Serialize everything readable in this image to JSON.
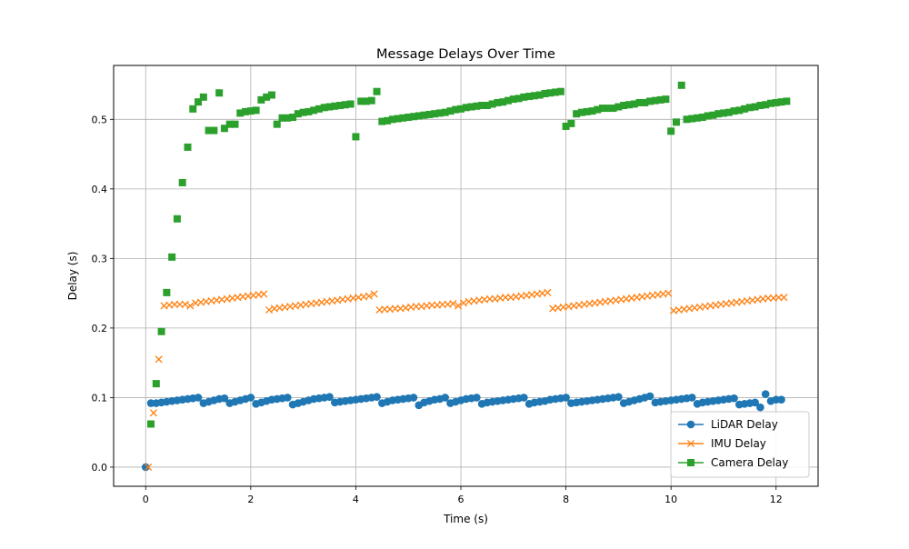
{
  "chart_data": {
    "type": "scatter",
    "title": "Message Delays Over Time",
    "xlabel": "Time (s)",
    "ylabel": "Delay (s)",
    "xlim": [
      -0.61,
      12.8
    ],
    "ylim": [
      -0.0275,
      0.5775
    ],
    "xticks": [
      0,
      2,
      4,
      6,
      8,
      10,
      12
    ],
    "yticks": [
      0.0,
      0.1,
      0.2,
      0.3,
      0.4,
      0.5
    ],
    "xtick_labels": [
      "0",
      "2",
      "4",
      "6",
      "8",
      "10",
      "12"
    ],
    "ytick_labels": [
      "0.0",
      "0.1",
      "0.2",
      "0.3",
      "0.4",
      "0.5"
    ],
    "grid": true,
    "legend_position": "bottom-right",
    "series": [
      {
        "name": "LiDAR Delay",
        "color": "#1f77b4",
        "marker": "circle",
        "x": [
          0,
          0.1,
          0.2,
          0.3,
          0.4,
          0.5,
          0.6,
          0.7,
          0.8,
          0.9,
          1.0,
          1.1,
          1.2,
          1.3,
          1.4,
          1.5,
          1.6,
          1.7,
          1.8,
          1.9,
          2.0,
          2.1,
          2.2,
          2.3,
          2.4,
          2.5,
          2.6,
          2.7,
          2.8,
          2.9,
          3.0,
          3.1,
          3.2,
          3.3,
          3.4,
          3.5,
          3.6,
          3.7,
          3.8,
          3.9,
          4.0,
          4.1,
          4.2,
          4.3,
          4.4,
          4.5,
          4.6,
          4.7,
          4.8,
          4.9,
          5.0,
          5.1,
          5.2,
          5.3,
          5.4,
          5.5,
          5.6,
          5.7,
          5.8,
          5.9,
          6.0,
          6.1,
          6.2,
          6.3,
          6.4,
          6.5,
          6.6,
          6.7,
          6.8,
          6.9,
          7.0,
          7.1,
          7.2,
          7.3,
          7.4,
          7.5,
          7.6,
          7.7,
          7.8,
          7.9,
          8.0,
          8.1,
          8.2,
          8.3,
          8.4,
          8.5,
          8.6,
          8.7,
          8.8,
          8.9,
          9.0,
          9.1,
          9.2,
          9.3,
          9.4,
          9.5,
          9.6,
          9.7,
          9.8,
          9.9,
          10.0,
          10.1,
          10.2,
          10.3,
          10.4,
          10.5,
          10.6,
          10.7,
          10.8,
          10.9,
          11.0,
          11.1,
          11.2,
          11.3,
          11.4,
          11.5,
          11.6,
          11.7,
          11.8,
          11.9,
          12.0,
          12.1
        ],
        "y": [
          0.0,
          0.092,
          0.092,
          0.093,
          0.094,
          0.095,
          0.096,
          0.097,
          0.098,
          0.099,
          0.1,
          0.092,
          0.094,
          0.096,
          0.098,
          0.099,
          0.092,
          0.094,
          0.096,
          0.098,
          0.1,
          0.091,
          0.093,
          0.095,
          0.097,
          0.098,
          0.099,
          0.1,
          0.09,
          0.092,
          0.094,
          0.096,
          0.098,
          0.099,
          0.1,
          0.101,
          0.093,
          0.094,
          0.095,
          0.096,
          0.097,
          0.098,
          0.099,
          0.1,
          0.101,
          0.092,
          0.094,
          0.096,
          0.097,
          0.098,
          0.099,
          0.1,
          0.089,
          0.093,
          0.095,
          0.097,
          0.098,
          0.1,
          0.092,
          0.094,
          0.096,
          0.098,
          0.099,
          0.1,
          0.091,
          0.093,
          0.094,
          0.095,
          0.096,
          0.097,
          0.098,
          0.099,
          0.1,
          0.091,
          0.093,
          0.094,
          0.095,
          0.097,
          0.098,
          0.099,
          0.1,
          0.092,
          0.093,
          0.094,
          0.095,
          0.096,
          0.097,
          0.098,
          0.099,
          0.1,
          0.101,
          0.092,
          0.094,
          0.096,
          0.098,
          0.1,
          0.102,
          0.093,
          0.094,
          0.095,
          0.096,
          0.097,
          0.098,
          0.099,
          0.1,
          0.091,
          0.093,
          0.094,
          0.095,
          0.096,
          0.097,
          0.098,
          0.099,
          0.09,
          0.091,
          0.092,
          0.093,
          0.086,
          0.105,
          0.095,
          0.097,
          0.097
        ]
      },
      {
        "name": "IMU Delay",
        "color": "#ff7f0e",
        "marker": "x",
        "x": [
          0.05,
          0.15,
          0.25,
          0.35,
          0.45,
          0.55,
          0.65,
          0.75,
          0.85,
          0.95,
          1.05,
          1.15,
          1.25,
          1.35,
          1.45,
          1.55,
          1.65,
          1.75,
          1.85,
          1.95,
          2.05,
          2.15,
          2.25,
          2.35,
          2.45,
          2.55,
          2.65,
          2.75,
          2.85,
          2.95,
          3.05,
          3.15,
          3.25,
          3.35,
          3.45,
          3.55,
          3.65,
          3.75,
          3.85,
          3.95,
          4.05,
          4.15,
          4.25,
          4.35,
          4.45,
          4.55,
          4.65,
          4.75,
          4.85,
          4.95,
          5.05,
          5.15,
          5.25,
          5.35,
          5.45,
          5.55,
          5.65,
          5.75,
          5.85,
          5.95,
          6.05,
          6.15,
          6.25,
          6.35,
          6.45,
          6.55,
          6.65,
          6.75,
          6.85,
          6.95,
          7.05,
          7.15,
          7.25,
          7.35,
          7.45,
          7.55,
          7.65,
          7.75,
          7.85,
          7.95,
          8.05,
          8.15,
          8.25,
          8.35,
          8.45,
          8.55,
          8.65,
          8.75,
          8.85,
          8.95,
          9.05,
          9.15,
          9.25,
          9.35,
          9.45,
          9.55,
          9.65,
          9.75,
          9.85,
          9.95,
          10.05,
          10.15,
          10.25,
          10.35,
          10.45,
          10.55,
          10.65,
          10.75,
          10.85,
          10.95,
          11.05,
          11.15,
          11.25,
          11.35,
          11.45,
          11.55,
          11.65,
          11.75,
          11.85,
          11.95,
          12.05,
          12.15
        ],
        "y": [
          0.0,
          0.078,
          0.155,
          0.232,
          0.233,
          0.234,
          0.234,
          0.234,
          0.232,
          0.236,
          0.237,
          0.238,
          0.239,
          0.24,
          0.241,
          0.242,
          0.243,
          0.244,
          0.245,
          0.246,
          0.247,
          0.248,
          0.249,
          0.226,
          0.228,
          0.229,
          0.23,
          0.231,
          0.232,
          0.233,
          0.234,
          0.235,
          0.236,
          0.237,
          0.238,
          0.239,
          0.24,
          0.241,
          0.242,
          0.243,
          0.244,
          0.245,
          0.246,
          0.249,
          0.226,
          0.227,
          0.227,
          0.228,
          0.228,
          0.229,
          0.23,
          0.231,
          0.231,
          0.232,
          0.233,
          0.233,
          0.234,
          0.234,
          0.235,
          0.232,
          0.236,
          0.238,
          0.239,
          0.24,
          0.241,
          0.242,
          0.242,
          0.243,
          0.244,
          0.244,
          0.245,
          0.246,
          0.247,
          0.248,
          0.249,
          0.25,
          0.251,
          0.228,
          0.229,
          0.23,
          0.231,
          0.232,
          0.233,
          0.234,
          0.235,
          0.236,
          0.237,
          0.238,
          0.239,
          0.24,
          0.241,
          0.242,
          0.243,
          0.244,
          0.245,
          0.246,
          0.247,
          0.248,
          0.249,
          0.25,
          0.225,
          0.226,
          0.227,
          0.228,
          0.229,
          0.23,
          0.231,
          0.232,
          0.233,
          0.234,
          0.235,
          0.236,
          0.237,
          0.238,
          0.239,
          0.24,
          0.241,
          0.242,
          0.243,
          0.243,
          0.244,
          0.244
        ]
      },
      {
        "name": "Camera Delay",
        "color": "#2ca02c",
        "marker": "square",
        "x": [
          0.1,
          0.2,
          0.3,
          0.4,
          0.5,
          0.6,
          0.7,
          0.8,
          0.9,
          1.0,
          1.1,
          1.2,
          1.3,
          1.4,
          1.5,
          1.6,
          1.7,
          1.8,
          1.9,
          2.0,
          2.1,
          2.2,
          2.3,
          2.4,
          2.5,
          2.6,
          2.7,
          2.8,
          2.9,
          3.0,
          3.1,
          3.2,
          3.3,
          3.4,
          3.5,
          3.6,
          3.7,
          3.8,
          3.9,
          4.0,
          4.1,
          4.2,
          4.3,
          4.4,
          4.5,
          4.6,
          4.7,
          4.8,
          4.9,
          5.0,
          5.1,
          5.2,
          5.3,
          5.4,
          5.5,
          5.6,
          5.7,
          5.8,
          5.9,
          6.0,
          6.1,
          6.2,
          6.3,
          6.4,
          6.5,
          6.6,
          6.7,
          6.8,
          6.9,
          7.0,
          7.1,
          7.2,
          7.3,
          7.4,
          7.5,
          7.6,
          7.7,
          7.8,
          7.9,
          8.0,
          8.1,
          8.2,
          8.3,
          8.4,
          8.5,
          8.6,
          8.7,
          8.8,
          8.9,
          9.0,
          9.1,
          9.2,
          9.3,
          9.4,
          9.5,
          9.6,
          9.7,
          9.8,
          9.9,
          10.0,
          10.1,
          10.2,
          10.3,
          10.4,
          10.5,
          10.6,
          10.7,
          10.8,
          10.9,
          11.0,
          11.1,
          11.2,
          11.3,
          11.4,
          11.5,
          11.6,
          11.7,
          11.8,
          11.9,
          12.0,
          12.1,
          12.2
        ],
        "y": [
          0.062,
          0.12,
          0.195,
          0.251,
          0.302,
          0.357,
          0.409,
          0.46,
          0.515,
          0.525,
          0.532,
          0.484,
          0.484,
          0.538,
          0.487,
          0.493,
          0.493,
          0.509,
          0.511,
          0.512,
          0.513,
          0.528,
          0.532,
          0.535,
          0.493,
          0.502,
          0.502,
          0.503,
          0.508,
          0.51,
          0.511,
          0.513,
          0.515,
          0.517,
          0.518,
          0.519,
          0.52,
          0.521,
          0.522,
          0.475,
          0.526,
          0.526,
          0.527,
          0.54,
          0.497,
          0.498,
          0.5,
          0.501,
          0.502,
          0.503,
          0.504,
          0.505,
          0.506,
          0.507,
          0.508,
          0.509,
          0.51,
          0.512,
          0.514,
          0.515,
          0.517,
          0.518,
          0.519,
          0.52,
          0.52,
          0.522,
          0.524,
          0.525,
          0.527,
          0.529,
          0.53,
          0.532,
          0.533,
          0.534,
          0.535,
          0.537,
          0.538,
          0.539,
          0.54,
          0.49,
          0.494,
          0.508,
          0.51,
          0.511,
          0.512,
          0.514,
          0.516,
          0.516,
          0.516,
          0.518,
          0.52,
          0.521,
          0.522,
          0.524,
          0.524,
          0.526,
          0.527,
          0.528,
          0.529,
          0.483,
          0.496,
          0.549,
          0.5,
          0.501,
          0.502,
          0.503,
          0.505,
          0.506,
          0.508,
          0.509,
          0.51,
          0.512,
          0.513,
          0.515,
          0.517,
          0.518,
          0.52,
          0.521,
          0.523,
          0.524,
          0.525,
          0.526
        ]
      }
    ]
  }
}
